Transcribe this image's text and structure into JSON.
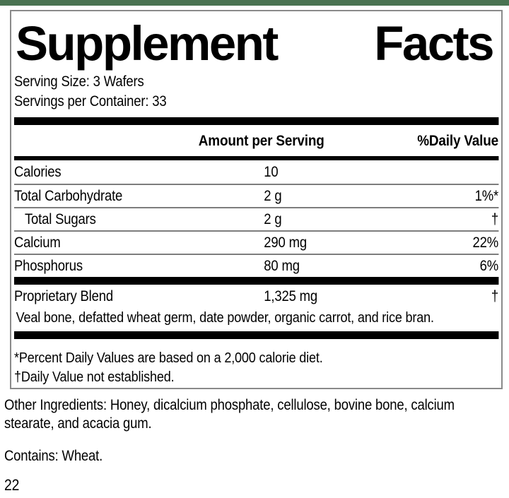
{
  "theme": {
    "accent_bar_color": "#4a7352",
    "panel_border_color": "#8a8a8a",
    "rule_color": "#000000",
    "text_color": "#000000"
  },
  "label": {
    "title": {
      "supplement": "Supplement",
      "facts": "Facts"
    },
    "serving_size": "Serving Size: 3 Wafers",
    "servings_per_container": "Servings per Container: 33",
    "columns": {
      "amount": "Amount per Serving",
      "daily_value": "%Daily Value"
    },
    "rows": [
      {
        "name": "Calories",
        "amount": "10",
        "dv": "",
        "indent": false
      },
      {
        "name": "Total Carbohydrate",
        "amount": "2 g",
        "dv": "1%*",
        "indent": false
      },
      {
        "name": "Total Sugars",
        "amount": "2 g",
        "dv": "†",
        "indent": true
      },
      {
        "name": "Calcium",
        "amount": "290 mg",
        "dv": "22%",
        "indent": false
      },
      {
        "name": "Phosphorus",
        "amount": "80 mg",
        "dv": "6%",
        "indent": false
      }
    ],
    "blend": {
      "name": "Proprietary Blend",
      "amount": "1,325 mg",
      "dv": "†",
      "description": "Veal bone, defatted wheat germ, date powder, organic carrot, and rice bran."
    },
    "footnotes": [
      "*Percent Daily Values are based on a 2,000 calorie diet.",
      "†Daily Value not established."
    ]
  },
  "below": {
    "other_ingredients": "Other Ingredients: Honey, dicalcium phosphate, cellulose, bovine bone, calcium stearate, and acacia gum.",
    "contains": "Contains: Wheat.",
    "page_number": "22"
  }
}
